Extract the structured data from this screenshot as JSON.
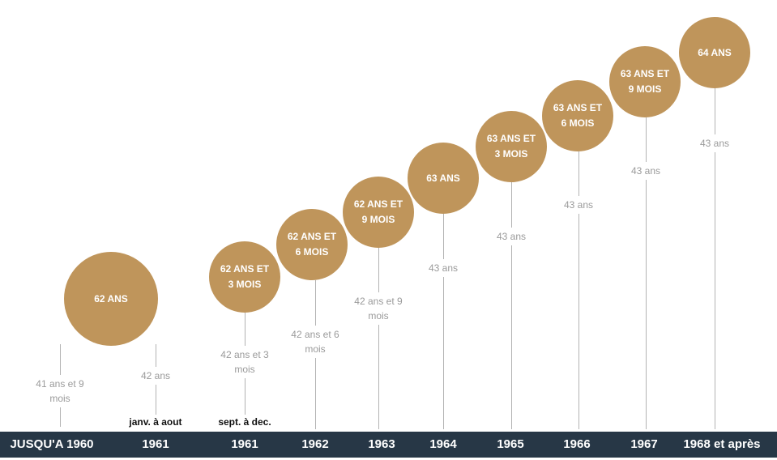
{
  "colors": {
    "circle": "#bf955b",
    "bar": "#273746",
    "line": "#b3b3b3",
    "muted_text": "#9a9a9a"
  },
  "entries": [
    {
      "year": "JUSQU'A 1960",
      "age": "",
      "duration": "41 ans et 9\nmois",
      "sub": ""
    },
    {
      "year": "1961",
      "age": "62 ANS",
      "duration": "42 ans",
      "sub": "janv. à aout"
    },
    {
      "year": "1961",
      "age": "62 ANS ET\n3 MOIS",
      "duration": "42 ans et 3\nmois",
      "sub": "sept. à dec."
    },
    {
      "year": "1962",
      "age": "62 ANS ET\n6 MOIS",
      "duration": "42 ans et 6\nmois",
      "sub": ""
    },
    {
      "year": "1963",
      "age": "62 ANS ET\n9 MOIS",
      "duration": "42 ans et 9\nmois",
      "sub": ""
    },
    {
      "year": "1964",
      "age": "63 ANS",
      "duration": "43 ans",
      "sub": ""
    },
    {
      "year": "1965",
      "age": "63 ANS ET\n3 MOIS",
      "duration": "43 ans",
      "sub": ""
    },
    {
      "year": "1966",
      "age": "63 ANS ET\n6 MOIS",
      "duration": "43 ans",
      "sub": ""
    },
    {
      "year": "1967",
      "age": "63 ANS ET\n9 MOIS",
      "duration": "43 ans",
      "sub": ""
    },
    {
      "year": "1968 et après",
      "age": "64 ANS",
      "duration": "43 ans",
      "sub": ""
    }
  ]
}
